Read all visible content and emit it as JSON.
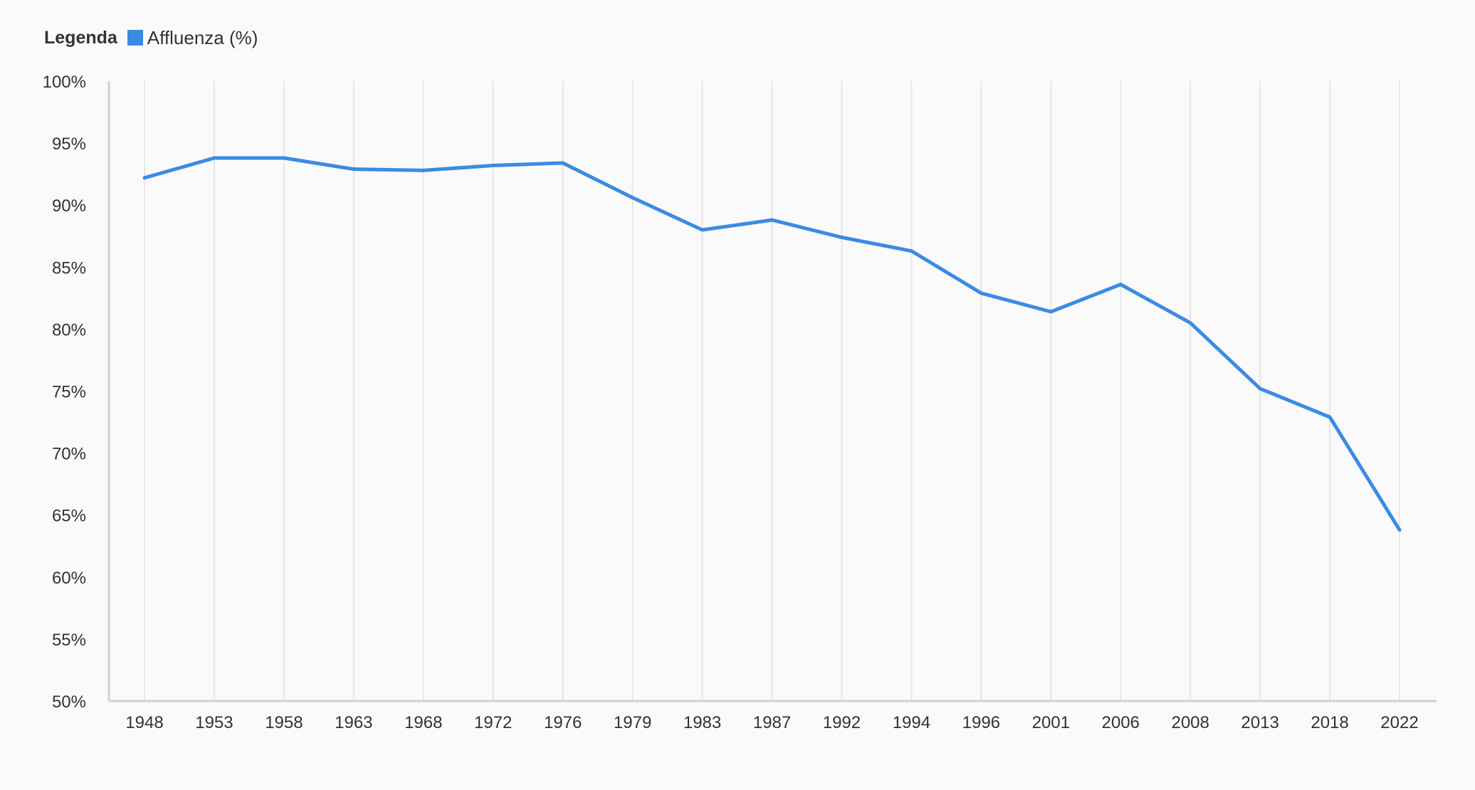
{
  "legend": {
    "title": "Legenda",
    "items": [
      {
        "label": "Affluenza (%)",
        "color": "#3b8be3"
      }
    ]
  },
  "chart_data": {
    "type": "line",
    "x": [
      "1948",
      "1953",
      "1958",
      "1963",
      "1968",
      "1972",
      "1976",
      "1979",
      "1983",
      "1987",
      "1992",
      "1994",
      "1996",
      "2001",
      "2006",
      "2008",
      "2013",
      "2018",
      "2022"
    ],
    "series": [
      {
        "name": "Affluenza (%)",
        "color": "#3b8be3",
        "values": [
          92.2,
          93.8,
          93.8,
          92.9,
          92.8,
          93.2,
          93.4,
          90.6,
          88.0,
          88.8,
          87.4,
          86.3,
          82.9,
          81.4,
          83.6,
          80.5,
          75.2,
          72.9,
          63.8
        ]
      }
    ],
    "yticks": [
      "50%",
      "55%",
      "60%",
      "65%",
      "70%",
      "75%",
      "80%",
      "85%",
      "90%",
      "95%",
      "100%"
    ],
    "ylim": [
      50,
      100
    ],
    "grid": "vertical",
    "legend_position": "top-left"
  }
}
